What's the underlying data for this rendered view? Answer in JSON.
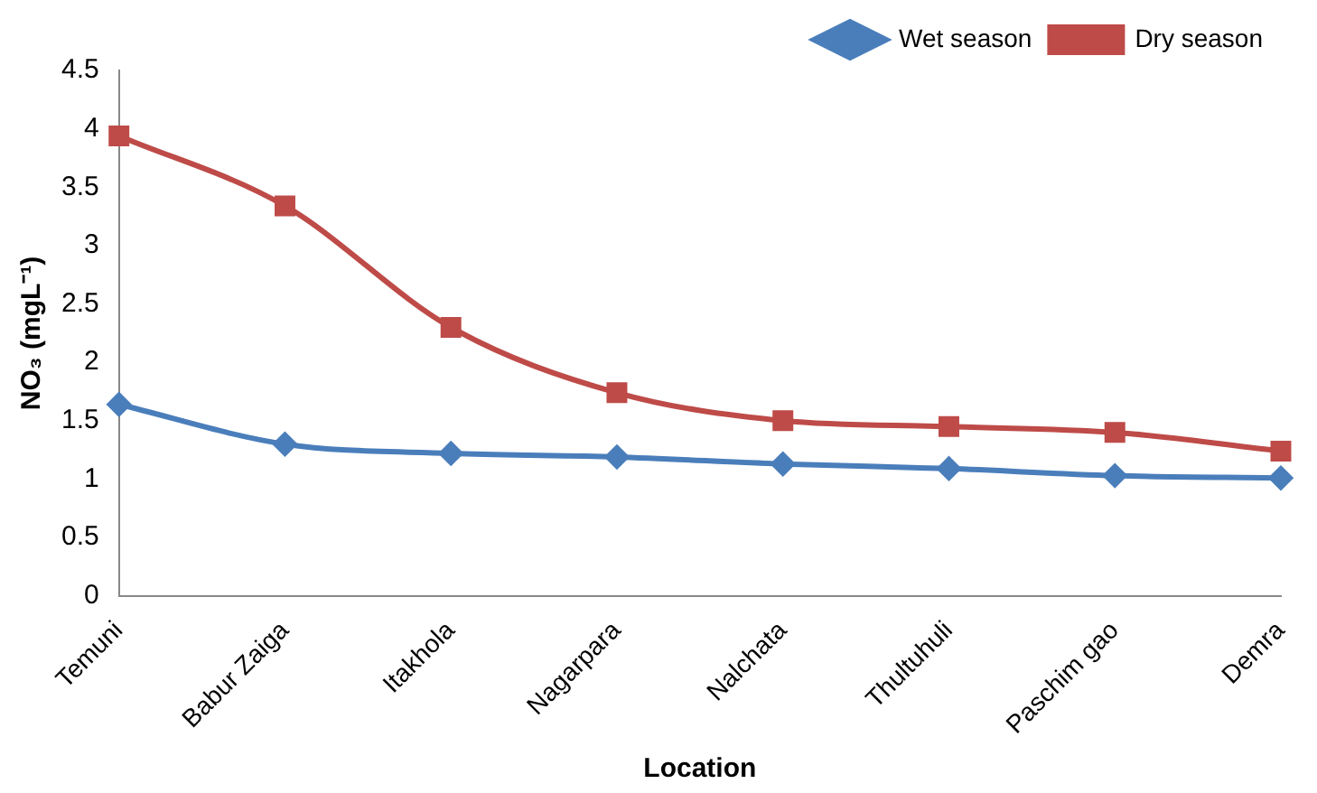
{
  "chart_data": {
    "type": "line",
    "xlabel": "Location",
    "ylabel": "NO₃ (mgL⁻¹)",
    "categories": [
      "Temuni",
      "Babur Zaiga",
      "Itakhola",
      "Nagarpara",
      "Nalchata",
      "Thultuhuli",
      "Paschim gao",
      "Demra"
    ],
    "series": [
      {
        "name": "Wet season",
        "color": "#4a7ebb",
        "marker": "diamond",
        "values": [
          1.64,
          1.3,
          1.22,
          1.19,
          1.13,
          1.09,
          1.03,
          1.01
        ]
      },
      {
        "name": "Dry season",
        "color": "#be4b48",
        "marker": "square",
        "values": [
          3.94,
          3.34,
          2.3,
          1.74,
          1.5,
          1.45,
          1.4,
          1.24
        ]
      }
    ],
    "ylim": [
      0,
      4.5
    ],
    "yticks": [
      0,
      0.5,
      1,
      1.5,
      2,
      2.5,
      3,
      3.5,
      4,
      4.5
    ],
    "grid": false,
    "legend": "top right"
  }
}
